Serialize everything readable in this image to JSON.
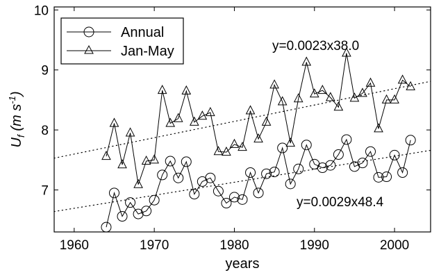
{
  "chart_data": {
    "type": "line",
    "xlabel": "years",
    "ylabel_main": "U",
    "ylabel_sub": "f",
    "ylabel_units": "(m s",
    "ylabel_units_sup": "-1",
    "ylabel_units_close": ")",
    "xlim": [
      1957.5,
      2004.5
    ],
    "ylim": [
      6.3,
      10.05
    ],
    "xticks": [
      1960,
      1970,
      1980,
      1990,
      2000
    ],
    "yticks": [
      7,
      8,
      9,
      10
    ],
    "legend_position": "top-left",
    "grid": false,
    "series": [
      {
        "name": "Annual",
        "marker": "circle",
        "color": "#000000",
        "x": [
          1964,
          1965,
          1966,
          1967,
          1968,
          1969,
          1970,
          1971,
          1972,
          1973,
          1974,
          1975,
          1976,
          1977,
          1978,
          1979,
          1980,
          1981,
          1982,
          1983,
          1984,
          1985,
          1986,
          1987,
          1988,
          1989,
          1990,
          1991,
          1992,
          1993,
          1994,
          1995,
          1996,
          1997,
          1998,
          1999,
          2000,
          2001,
          2002
        ],
        "values": [
          6.38,
          6.95,
          6.56,
          6.79,
          6.6,
          6.65,
          6.83,
          7.25,
          7.48,
          7.2,
          7.47,
          6.93,
          7.14,
          7.2,
          6.98,
          6.78,
          6.88,
          6.84,
          7.29,
          6.95,
          7.27,
          7.3,
          7.7,
          7.1,
          7.35,
          7.75,
          7.43,
          7.37,
          7.41,
          7.59,
          7.84,
          7.39,
          7.45,
          7.64,
          7.21,
          7.22,
          7.58,
          7.29,
          7.83
        ]
      },
      {
        "name": "Jan-May",
        "marker": "triangle",
        "color": "#000000",
        "x": [
          1964,
          1965,
          1966,
          1967,
          1968,
          1969,
          1970,
          1971,
          1972,
          1973,
          1974,
          1975,
          1976,
          1977,
          1978,
          1979,
          1980,
          1981,
          1982,
          1983,
          1984,
          1985,
          1986,
          1987,
          1988,
          1989,
          1990,
          1991,
          1992,
          1993,
          1994,
          1995,
          1996,
          1997,
          1998,
          1999,
          2000,
          2001,
          2002
        ],
        "values": [
          7.56,
          8.11,
          7.42,
          7.95,
          7.09,
          7.48,
          7.5,
          8.66,
          8.11,
          8.19,
          8.65,
          8.13,
          8.23,
          8.29,
          7.64,
          7.63,
          7.76,
          7.71,
          8.32,
          7.85,
          8.13,
          8.75,
          8.47,
          7.78,
          8.52,
          9.13,
          8.6,
          8.66,
          8.54,
          8.38,
          9.28,
          8.53,
          8.61,
          8.78,
          8.02,
          8.5,
          8.5,
          8.83,
          8.72
        ]
      }
    ],
    "trendlines": [
      {
        "series": "Jan-May",
        "label": "y=0.0023x38.0",
        "x_range": [
          1957.5,
          2004.5
        ],
        "y_range": [
          7.53,
          8.81
        ]
      },
      {
        "series": "Annual",
        "label": "y=0.0029x48.4",
        "x_range": [
          1957.5,
          2004.5
        ],
        "y_range": [
          6.64,
          7.66
        ]
      }
    ]
  }
}
